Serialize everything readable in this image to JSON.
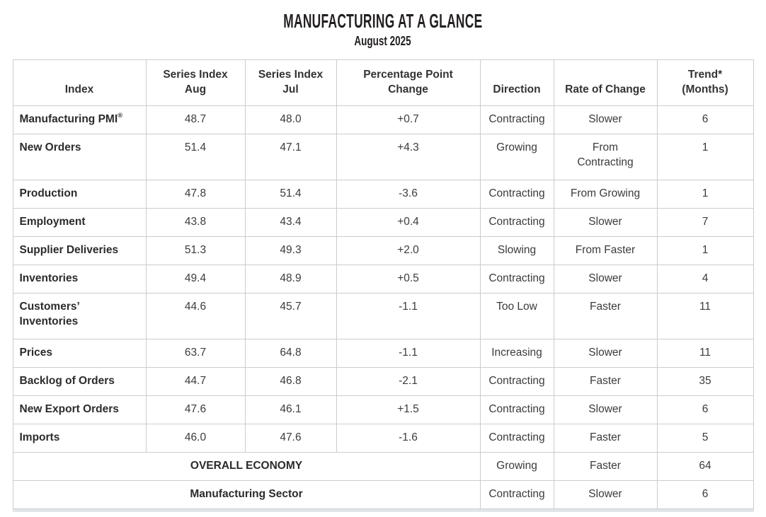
{
  "header": {
    "title": "MANUFACTURING AT A GLANCE",
    "subtitle": "August 2025"
  },
  "colors": {
    "title_text": "#231f20",
    "body_text": "#3b3b3b",
    "border": "#cccccc",
    "background": "#ffffff"
  },
  "table": {
    "columns": [
      {
        "id": "index",
        "label": "Index"
      },
      {
        "id": "series_aug",
        "label": "Series Index\nAug"
      },
      {
        "id": "series_jul",
        "label": "Series Index\nJul"
      },
      {
        "id": "change",
        "label": "Percentage Point\nChange"
      },
      {
        "id": "direction",
        "label": "Direction"
      },
      {
        "id": "rate",
        "label": "Rate of Change"
      },
      {
        "id": "trend",
        "label": "Trend*\n(Months)"
      }
    ],
    "rows": [
      {
        "index": "Manufacturing PMI",
        "index_sup": "®",
        "series_aug": "48.7",
        "series_jul": "48.0",
        "change": "+0.7",
        "direction": "Contracting",
        "rate": "Slower",
        "trend": "6"
      },
      {
        "index": "New Orders",
        "series_aug": "51.4",
        "series_jul": "47.1",
        "change": "+4.3",
        "direction": "Growing",
        "rate": "From\nContracting",
        "trend": "1",
        "tall": true
      },
      {
        "index": "Production",
        "series_aug": "47.8",
        "series_jul": "51.4",
        "change": "-3.6",
        "direction": "Contracting",
        "rate": "From Growing",
        "trend": "1"
      },
      {
        "index": "Employment",
        "series_aug": "43.8",
        "series_jul": "43.4",
        "change": "+0.4",
        "direction": "Contracting",
        "rate": "Slower",
        "trend": "7"
      },
      {
        "index": "Supplier Deliveries",
        "series_aug": "51.3",
        "series_jul": "49.3",
        "change": "+2.0",
        "direction": "Slowing",
        "rate": "From Faster",
        "trend": "1"
      },
      {
        "index": "Inventories",
        "series_aug": "49.4",
        "series_jul": "48.9",
        "change": "+0.5",
        "direction": "Contracting",
        "rate": "Slower",
        "trend": "4"
      },
      {
        "index": "Customers’\nInventories",
        "series_aug": "44.6",
        "series_jul": "45.7",
        "change": "-1.1",
        "direction": "Too Low",
        "rate": "Faster",
        "trend": "11",
        "tall": true
      },
      {
        "index": "Prices",
        "series_aug": "63.7",
        "series_jul": "64.8",
        "change": "-1.1",
        "direction": "Increasing",
        "rate": "Slower",
        "trend": "11"
      },
      {
        "index": "Backlog of Orders",
        "series_aug": "44.7",
        "series_jul": "46.8",
        "change": "-2.1",
        "direction": "Contracting",
        "rate": "Faster",
        "trend": "35"
      },
      {
        "index": "New Export Orders",
        "series_aug": "47.6",
        "series_jul": "46.1",
        "change": "+1.5",
        "direction": "Contracting",
        "rate": "Slower",
        "trend": "6"
      },
      {
        "index": "Imports",
        "series_aug": "46.0",
        "series_jul": "47.6",
        "change": "-1.6",
        "direction": "Contracting",
        "rate": "Faster",
        "trend": "5"
      }
    ],
    "summary_rows": [
      {
        "label": "OVERALL ECONOMY",
        "direction": "Growing",
        "rate": "Faster",
        "trend": "64"
      },
      {
        "label": "Manufacturing Sector",
        "direction": "Contracting",
        "rate": "Slower",
        "trend": "6"
      }
    ]
  }
}
